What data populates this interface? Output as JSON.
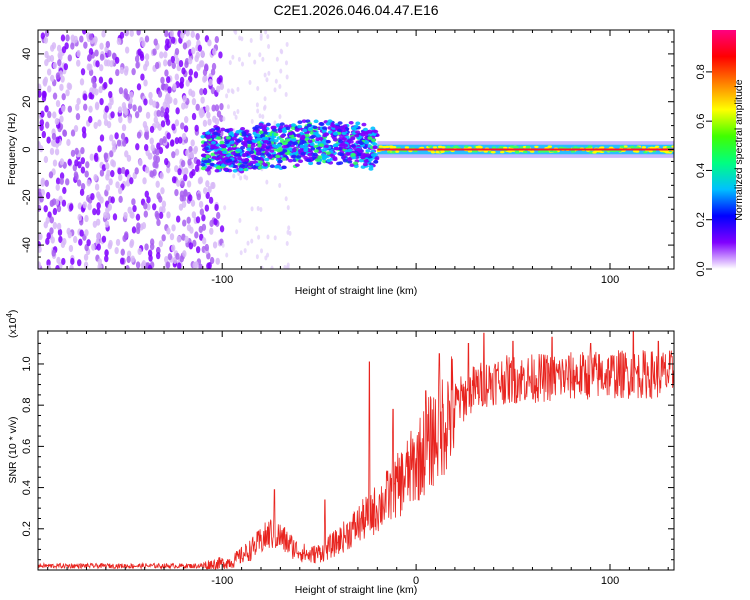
{
  "title": "C2E1.2026.046.04.47.E16",
  "spectrogram": {
    "type": "heatmap",
    "xlabel": "Height of straight line (km)",
    "ylabel": "Frequency (Hz)",
    "xlim": [
      -195,
      133
    ],
    "ylim": [
      -50,
      50
    ],
    "xticks": [
      -100,
      0,
      100
    ],
    "xtick_labels": [
      "-100",
      "",
      "100"
    ],
    "yticks": [
      -40,
      -20,
      0,
      20,
      40
    ],
    "ytick_labels": [
      "-40",
      "-20",
      "0",
      "20",
      "40"
    ],
    "noise_region": [
      -195,
      -100
    ],
    "signal_line_start": -20,
    "signal_line_frequency": 0,
    "colorbar": {
      "label": "Normalized spectral amplitude",
      "range": [
        0,
        0.97
      ],
      "ticks": [
        0.0,
        0.2,
        0.4,
        0.6,
        0.8
      ],
      "tick_labels": [
        "0.0",
        "0.2",
        "0.4",
        "0.6",
        "0.8"
      ],
      "colors": [
        "#ffffff",
        "#8000ff",
        "#0000ff",
        "#00c0ff",
        "#00ff80",
        "#40ff00",
        "#ffff00",
        "#ff8000",
        "#ff0000",
        "#ff0080"
      ]
    }
  },
  "snr_chart": {
    "type": "line",
    "xlabel": "Height of straight line (km)",
    "ylabel": "SNR (10 * v/v)",
    "multiplier": "(x10",
    "multiplier_exp": "4",
    "multiplier_close": ")",
    "xlim": [
      -195,
      133
    ],
    "ylim": [
      0,
      1.16
    ],
    "xticks": [
      -100,
      0,
      100
    ],
    "xtick_labels": [
      "-100",
      "0",
      "100"
    ],
    "yticks": [
      0.2,
      0.4,
      0.6,
      0.8,
      1.0
    ],
    "ytick_labels": [
      "0.2",
      "0.4",
      "0.6",
      "0.8",
      "1.0"
    ],
    "color": "#e8241f",
    "envelope": [
      {
        "x": -195,
        "y": 0.02
      },
      {
        "x": -110,
        "y": 0.02
      },
      {
        "x": -95,
        "y": 0.04
      },
      {
        "x": -85,
        "y": 0.1
      },
      {
        "x": -75,
        "y": 0.18
      },
      {
        "x": -70,
        "y": 0.16
      },
      {
        "x": -62,
        "y": 0.1
      },
      {
        "x": -55,
        "y": 0.07
      },
      {
        "x": -48,
        "y": 0.09
      },
      {
        "x": -40,
        "y": 0.14
      },
      {
        "x": -30,
        "y": 0.22
      },
      {
        "x": -20,
        "y": 0.3
      },
      {
        "x": -10,
        "y": 0.4
      },
      {
        "x": 0,
        "y": 0.52
      },
      {
        "x": 10,
        "y": 0.66
      },
      {
        "x": 20,
        "y": 0.8
      },
      {
        "x": 30,
        "y": 0.88
      },
      {
        "x": 40,
        "y": 0.92
      },
      {
        "x": 60,
        "y": 0.93
      },
      {
        "x": 80,
        "y": 0.94
      },
      {
        "x": 100,
        "y": 0.95
      },
      {
        "x": 120,
        "y": 0.95
      },
      {
        "x": 133,
        "y": 0.95
      }
    ],
    "spikes": [
      {
        "x": -73,
        "y": 0.39
      },
      {
        "x": -47,
        "y": 0.34
      },
      {
        "x": -24,
        "y": 1.01
      },
      {
        "x": -12,
        "y": 0.78
      },
      {
        "x": 5,
        "y": 0.87
      },
      {
        "x": 12,
        "y": 1.05
      },
      {
        "x": 27,
        "y": 1.1
      },
      {
        "x": 35,
        "y": 1.15
      },
      {
        "x": 50,
        "y": 1.11
      },
      {
        "x": 70,
        "y": 1.13
      },
      {
        "x": 90,
        "y": 1.1
      },
      {
        "x": 112,
        "y": 1.16
      },
      {
        "x": 125,
        "y": 1.11
      }
    ]
  }
}
